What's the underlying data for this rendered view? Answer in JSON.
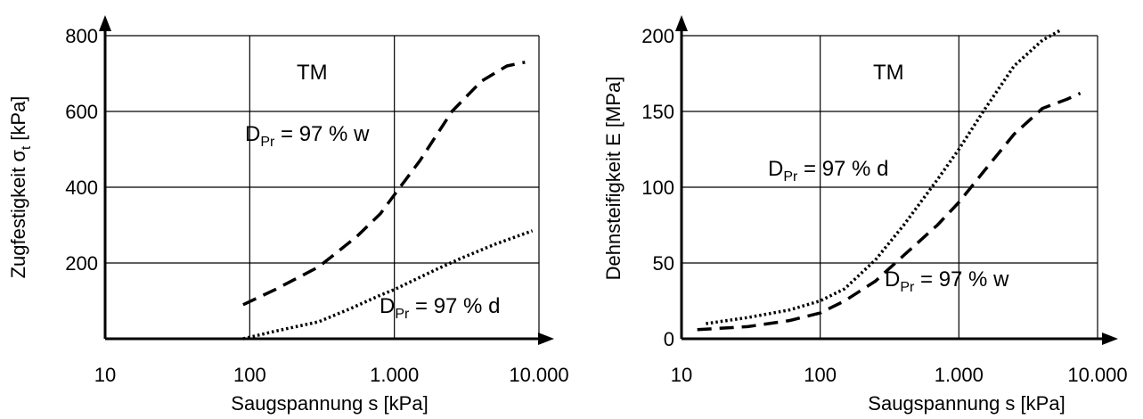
{
  "chart_data": [
    {
      "type": "line",
      "x_scale": "log",
      "xlim": [
        10,
        10000
      ],
      "ylim": [
        0,
        800
      ],
      "x_ticks": [
        "10",
        "100",
        "1.000",
        "10.000"
      ],
      "y_ticks": [
        "200",
        "400",
        "600",
        "800"
      ],
      "xlabel": "Saugspannung s [kPa]",
      "ylabel_main": "Zugfestigkeit σ",
      "ylabel_sub": "t",
      "ylabel_unit": " [kPa]",
      "grid": true,
      "annotations": [
        {
          "text": "TM"
        },
        {
          "base": "D",
          "sub": "Pr",
          "rest": " = 97 % w"
        },
        {
          "base": "D",
          "sub": "Pr",
          "rest": " = 97 % d"
        }
      ],
      "series": [
        {
          "style": "dashed",
          "x": [
            90,
            150,
            300,
            550,
            800,
            1000,
            1500,
            2500,
            4000,
            6000,
            8000
          ],
          "y": [
            90,
            130,
            190,
            270,
            330,
            380,
            470,
            600,
            680,
            720,
            730
          ]
        },
        {
          "style": "dotted",
          "x": [
            90,
            150,
            300,
            500,
            800,
            1000,
            2000,
            3000,
            5000,
            9000
          ],
          "y": [
            0,
            20,
            45,
            80,
            115,
            130,
            185,
            215,
            250,
            285
          ]
        }
      ]
    },
    {
      "type": "line",
      "x_scale": "log",
      "xlim": [
        10,
        10000
      ],
      "ylim": [
        0,
        200
      ],
      "x_ticks": [
        "10",
        "100",
        "1.000",
        "10.000"
      ],
      "y_ticks": [
        "0",
        "50",
        "100",
        "150",
        "200"
      ],
      "xlabel": "Saugspannung s [kPa]",
      "ylabel_main": "Dehnsteifigkeit E [MPa]",
      "ylabel_sub": "",
      "ylabel_unit": "",
      "grid": true,
      "annotations": [
        {
          "text": "TM"
        },
        {
          "base": "D",
          "sub": "Pr",
          "rest": " = 97 % d"
        },
        {
          "base": "D",
          "sub": "Pr",
          "rest": " = 97 % w"
        }
      ],
      "series": [
        {
          "style": "dotted",
          "x": [
            15,
            30,
            60,
            100,
            150,
            250,
            400,
            700,
            1000,
            1500,
            2500,
            4000,
            5500
          ],
          "y": [
            10,
            14,
            19,
            25,
            33,
            52,
            75,
            105,
            125,
            150,
            180,
            197,
            204
          ]
        },
        {
          "style": "dashed",
          "x": [
            13,
            30,
            60,
            100,
            150,
            250,
            400,
            700,
            1000,
            1500,
            2500,
            4000,
            6000,
            7500
          ],
          "y": [
            6,
            8,
            12,
            17,
            25,
            38,
            55,
            75,
            90,
            110,
            135,
            152,
            158,
            162
          ]
        }
      ]
    }
  ]
}
